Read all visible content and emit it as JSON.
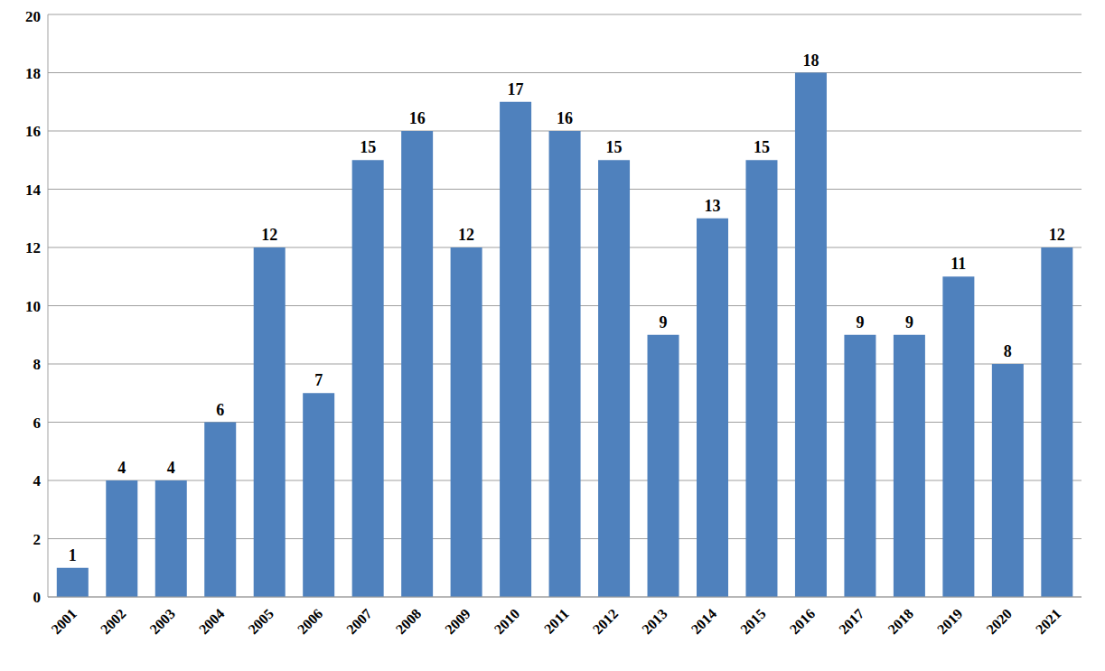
{
  "chart_data": {
    "type": "bar",
    "categories": [
      "2001",
      "2002",
      "2003",
      "2004",
      "2005",
      "2006",
      "2007",
      "2008",
      "2009",
      "2010",
      "2011",
      "2012",
      "2013",
      "2014",
      "2015",
      "2016",
      "2017",
      "2018",
      "2019",
      "2020",
      "2021"
    ],
    "values": [
      1,
      4,
      4,
      6,
      12,
      7,
      15,
      16,
      12,
      17,
      16,
      15,
      9,
      13,
      15,
      18,
      9,
      9,
      11,
      8,
      12
    ],
    "color": "#4f81bd",
    "ylim": [
      0,
      20
    ],
    "yticks": [
      0,
      2,
      4,
      6,
      8,
      10,
      12,
      14,
      16,
      18,
      20
    ],
    "grid": true,
    "data_labels": true
  }
}
